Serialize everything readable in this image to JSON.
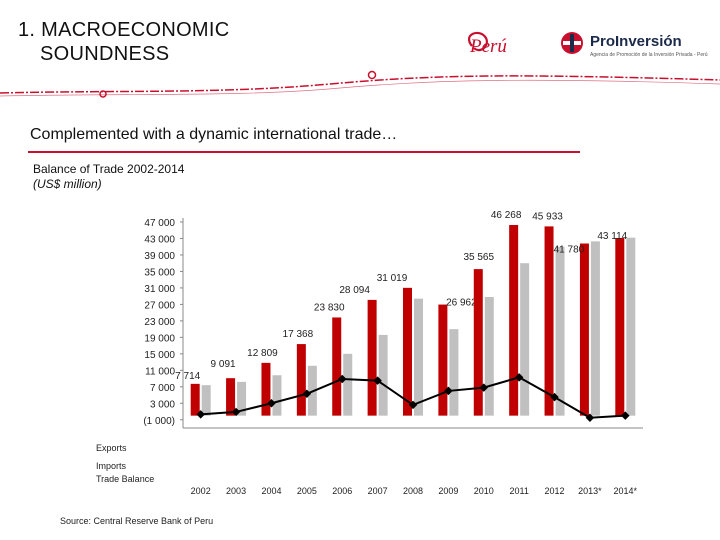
{
  "header": {
    "title_line1": "1. MACROECONOMIC",
    "title_line2": "SOUNDNESS",
    "logo_peru": "Perú",
    "logo_proinversion": "ProInversión",
    "logo_proinversion_sub": "Agencia de Promoción de la Inversión Privada - Perú"
  },
  "subtitle": "Complemented with a dynamic international trade…",
  "source": "Source: Central Reserve Bank of Peru",
  "colors": {
    "exports": "#c00000",
    "imports": "#c0c0c0",
    "balance": "#000000",
    "accent": "#c8102e"
  },
  "chart_data": {
    "type": "bar",
    "title": "Balance of Trade 2002-2014",
    "ylabel": "(US$ million)",
    "categories": [
      "2002",
      "2003",
      "2004",
      "2005",
      "2006",
      "2007",
      "2008",
      "2009",
      "2010",
      "2011",
      "2012",
      "2013*",
      "2014*"
    ],
    "x_tick_labels": [
      "2002",
      "2003",
      "2004",
      "2005",
      "2006",
      "2007",
      "2008",
      "2009",
      "2010",
      "2011",
      "2012",
      "2013*",
      "2014*"
    ],
    "y_tick_labels": [
      "47 000",
      "43 000",
      "39 000",
      "35 000",
      "31 000",
      "27 000",
      "23 000",
      "19 000",
      "15 000",
      "11 000",
      "7 000",
      "3 000",
      "(1 000)"
    ],
    "y_tick_values": [
      47000,
      43000,
      39000,
      35000,
      31000,
      27000,
      23000,
      19000,
      15000,
      11000,
      7000,
      3000,
      -1000
    ],
    "ylim": [
      -1000,
      49000
    ],
    "grid": false,
    "series": [
      {
        "name": "Exports",
        "kind": "bar",
        "values": [
          7714,
          9091,
          12809,
          17368,
          23830,
          28094,
          31019,
          26962,
          35565,
          46268,
          45933,
          41780,
          43114
        ]
      },
      {
        "name": "Imports",
        "kind": "bar",
        "values": [
          7400,
          8200,
          9800,
          12100,
          15000,
          19600,
          28400,
          21000,
          28800,
          37000,
          41000,
          42300,
          43200
        ]
      },
      {
        "name": "Trade Balance",
        "kind": "line",
        "values": [
          300,
          900,
          3000,
          5300,
          8900,
          8500,
          2600,
          6000,
          6800,
          9300,
          4500,
          -500,
          0
        ]
      }
    ],
    "data_labels": [
      "7 714",
      "9 091",
      "12 809",
      "17 368",
      "23 830",
      "28 094",
      "31 019",
      "26 962",
      "35 565",
      "46 268",
      "45 933",
      "41 780",
      "43 114"
    ]
  }
}
